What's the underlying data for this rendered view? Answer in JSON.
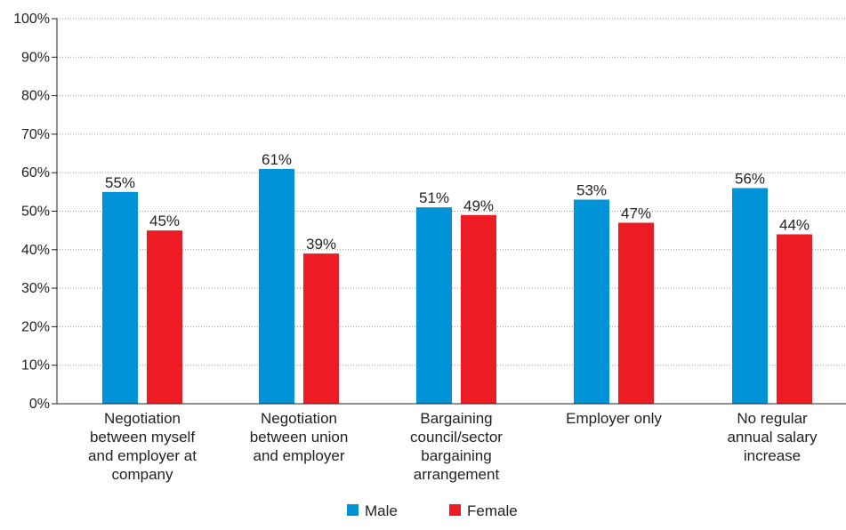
{
  "chart_data": {
    "type": "bar",
    "categories": [
      [
        "Negotiation",
        "between myself",
        "and employer at",
        "company"
      ],
      [
        "Negotiation",
        "between union",
        "and employer"
      ],
      [
        "Bargaining",
        "council/sector",
        "bargaining",
        "arrangement"
      ],
      [
        "Employer only"
      ],
      [
        "No regular",
        "annual salary",
        "increase"
      ]
    ],
    "series": [
      {
        "name": "Male",
        "color": "#0093d7",
        "values": [
          55,
          61,
          51,
          53,
          56
        ],
        "labels": [
          "55%",
          "61%",
          "51%",
          "53%",
          "56%"
        ]
      },
      {
        "name": "Female",
        "color": "#ed1c24",
        "values": [
          45,
          39,
          49,
          47,
          44
        ],
        "labels": [
          "45%",
          "39%",
          "49%",
          "47%",
          "44%"
        ]
      }
    ],
    "yticks": [
      "0%",
      "10%",
      "20%",
      "30%",
      "40%",
      "50%",
      "60%",
      "70%",
      "80%",
      "90%",
      "100%"
    ],
    "ylim": [
      0,
      100
    ],
    "grid": true,
    "legend_position": "bottom-center"
  }
}
